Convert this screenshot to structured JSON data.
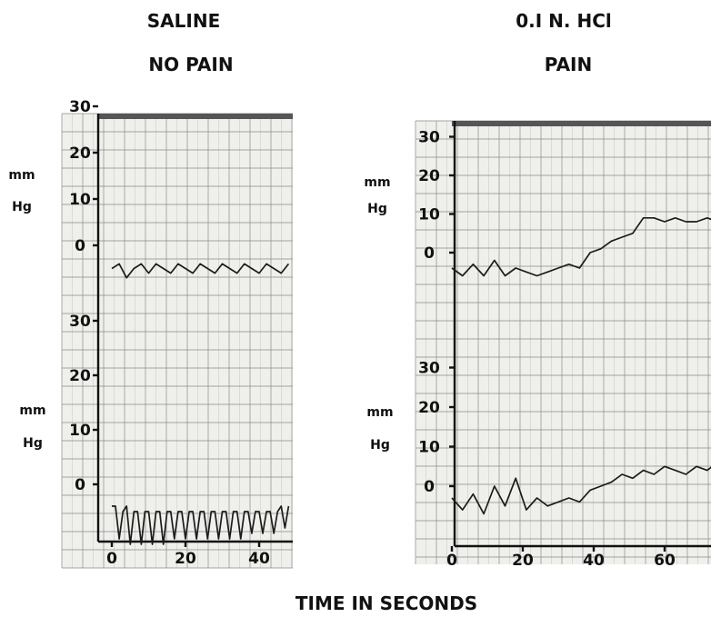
{
  "chart_data": [
    {
      "type": "line",
      "panel": "left",
      "title": "SALINE",
      "subtitle": "NO PAIN",
      "xticks": [
        0,
        20,
        40
      ],
      "xlim": [
        -2,
        48
      ],
      "traces": [
        {
          "ylabel_line1": "mm",
          "ylabel_line2": "Hg",
          "yticks": [
            0,
            10,
            20,
            30
          ],
          "ylim": [
            -12,
            32
          ],
          "x": [
            0,
            2,
            4,
            6,
            8,
            10,
            12,
            14,
            16,
            18,
            20,
            22,
            24,
            26,
            28,
            30,
            32,
            34,
            36,
            38,
            40,
            42,
            44,
            46,
            48
          ],
          "y": [
            -5,
            -4,
            -7,
            -5,
            -4,
            -6,
            -4,
            -5,
            -6,
            -4,
            -5,
            -6,
            -4,
            -5,
            -6,
            -4,
            -5,
            -6,
            -4,
            -5,
            -6,
            -4,
            -5,
            -6,
            -4
          ]
        },
        {
          "ylabel_line1": "mm",
          "ylabel_line2": "Hg",
          "yticks": [
            0,
            10,
            20,
            30
          ],
          "ylim": [
            -15,
            35
          ],
          "x": [
            0,
            1,
            2,
            3,
            4,
            5,
            6,
            7,
            8,
            9,
            10,
            11,
            12,
            13,
            14,
            15,
            16,
            17,
            18,
            19,
            20,
            21,
            22,
            23,
            24,
            25,
            26,
            27,
            28,
            29,
            30,
            31,
            32,
            33,
            34,
            35,
            36,
            37,
            38,
            39,
            40,
            41,
            42,
            43,
            44,
            45,
            46,
            47,
            48
          ],
          "y": [
            -4,
            -4,
            -10,
            -5,
            -4,
            -11,
            -5,
            -5,
            -11,
            -5,
            -5,
            -11,
            -5,
            -5,
            -11,
            -5,
            -5,
            -10,
            -5,
            -5,
            -10,
            -5,
            -5,
            -10,
            -5,
            -5,
            -10,
            -5,
            -5,
            -10,
            -5,
            -5,
            -10,
            -5,
            -5,
            -10,
            -5,
            -5,
            -9,
            -5,
            -5,
            -9,
            -5,
            -5,
            -9,
            -5,
            -4,
            -8,
            -4
          ]
        }
      ]
    },
    {
      "type": "line",
      "panel": "right",
      "title": "0.I N. HCl",
      "subtitle": "PAIN",
      "xticks": [
        0,
        20,
        40,
        60
      ],
      "xlim": [
        -5,
        75
      ],
      "traces": [
        {
          "ylabel_line1": "mm",
          "ylabel_line2": "Hg",
          "yticks": [
            0,
            10,
            20,
            30
          ],
          "ylim": [
            -12,
            32
          ],
          "x": [
            0,
            3,
            6,
            9,
            12,
            15,
            18,
            21,
            24,
            27,
            30,
            33,
            36,
            39,
            42,
            45,
            48,
            51,
            54,
            57,
            60,
            63,
            66,
            69,
            72,
            75
          ],
          "y": [
            -4,
            -6,
            -3,
            -6,
            -2,
            -6,
            -4,
            -5,
            -6,
            -5,
            -4,
            -3,
            -4,
            0,
            1,
            3,
            4,
            5,
            9,
            9,
            8,
            9,
            8,
            8,
            9,
            8
          ]
        },
        {
          "ylabel_line1": "mm",
          "ylabel_line2": "Hg",
          "yticks": [
            0,
            10,
            20,
            30
          ],
          "ylim": [
            -15,
            35
          ],
          "x": [
            0,
            3,
            6,
            9,
            12,
            15,
            18,
            21,
            24,
            27,
            30,
            33,
            36,
            39,
            42,
            45,
            48,
            51,
            54,
            57,
            60,
            63,
            66,
            69,
            72,
            75
          ],
          "y": [
            -3,
            -6,
            -2,
            -7,
            0,
            -5,
            2,
            -6,
            -3,
            -5,
            -4,
            -3,
            -4,
            -1,
            0,
            1,
            3,
            2,
            4,
            3,
            5,
            4,
            3,
            5,
            4,
            6
          ]
        }
      ]
    }
  ],
  "xaxis_title": "TIME IN SECONDS"
}
